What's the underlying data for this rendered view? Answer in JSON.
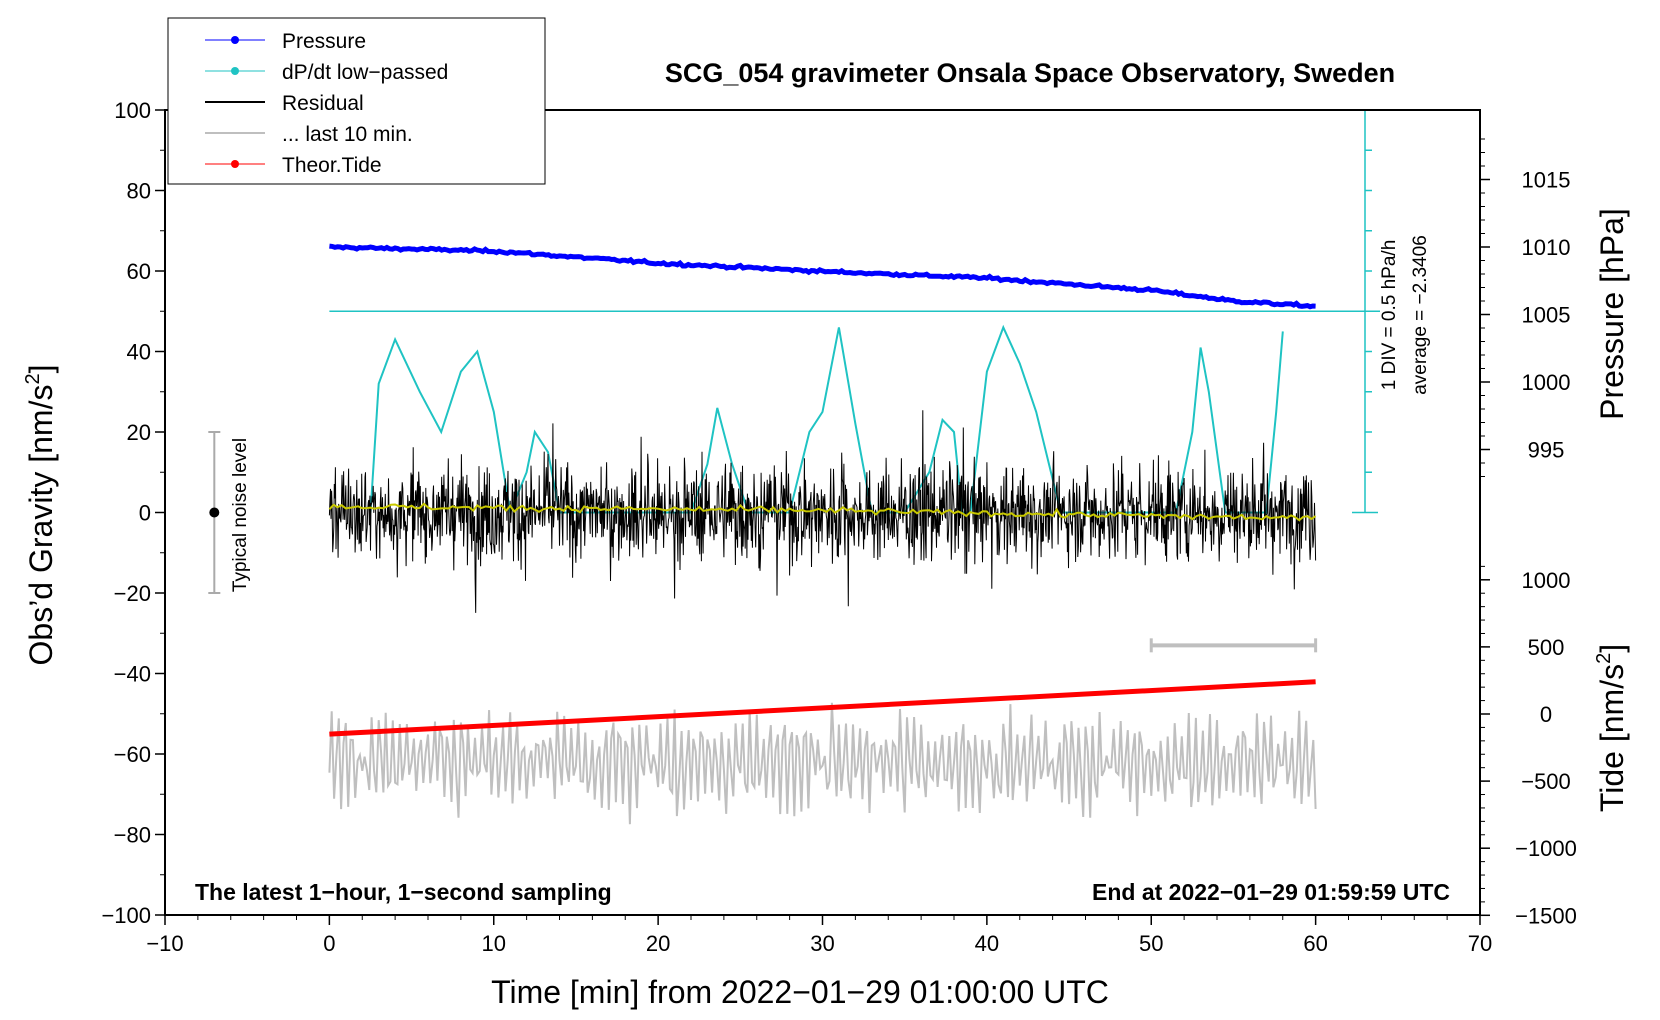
{
  "colors": {
    "pressure": "#0000ff",
    "dpdt": "#1fc3c3",
    "residual": "#000000",
    "last10": "#bfbfbf",
    "tide": "#ff0000",
    "mean": "#c8c800"
  },
  "chart_data": {
    "type": "line",
    "title": "SCG_054 gravimeter Onsala Space Observatory, Sweden",
    "xlabel": "Time [min] from 2022−01−29 01:00:00 UTC",
    "ylabel_left": "Obs’d Gravity [nm/s",
    "ylabel_left_sup": "2",
    "ylabel_left_end": "]",
    "ylabel_right_pressure": "Pressure [hPa]",
    "ylabel_right_tide": "Tide [nm/s",
    "ylabel_right_tide_sup": "2",
    "ylabel_right_tide_end": "]",
    "xlim": [
      -10,
      70
    ],
    "ylim": [
      -100,
      100
    ],
    "x_ticks": [
      "−10",
      "0",
      "10",
      "20",
      "30",
      "40",
      "50",
      "60",
      "70"
    ],
    "y_ticks": [
      "−100",
      "−80",
      "−60",
      "−40",
      "−20",
      "0",
      "20",
      "40",
      "60",
      "80",
      "100"
    ],
    "pressure_ticks": [
      "1015",
      "1010",
      "1005",
      "1000",
      "995"
    ],
    "pressure_tick_values": [
      1015,
      1010,
      1005,
      1000,
      995
    ],
    "tide_ticks": [
      "1000",
      "500",
      "0",
      "−500",
      "−1000",
      "−1500"
    ],
    "tide_tick_values": [
      1000,
      500,
      0,
      -500,
      -1000,
      -1500
    ],
    "legend": [
      "Pressure",
      "dP/dt low−passed",
      "Residual",
      "... last 10 min.",
      "Theor.Tide"
    ],
    "series": [
      {
        "name": "Pressure",
        "unit": "hPa",
        "x": [
          0,
          10,
          20,
          30,
          40,
          50,
          55,
          60
        ],
        "values": [
          1010.0,
          1009.7,
          1008.8,
          1008.2,
          1007.7,
          1006.8,
          1006.0,
          1005.6
        ]
      },
      {
        "name": "dP/dt low-passed",
        "unit": "gravity-axis units",
        "x": [
          2.5,
          3,
          4,
          5.5,
          6.8,
          8,
          9,
          10,
          11,
          12,
          12.5,
          13.3,
          14,
          20,
          22,
          23,
          23.6,
          24.5,
          25.5,
          28,
          29.2,
          30,
          31,
          32,
          33,
          35,
          36.5,
          37.3,
          38,
          38.5,
          39,
          40,
          41,
          42,
          43,
          44.5,
          46,
          49,
          51.5,
          52.5,
          53,
          53.5,
          54.5,
          55.5,
          57,
          57.6,
          58
        ],
        "values": [
          0,
          32,
          43,
          30,
          20,
          35,
          40,
          25,
          0,
          10,
          20,
          15,
          0,
          0,
          0,
          12,
          26,
          12,
          0,
          0,
          20,
          25,
          46,
          22,
          0,
          0,
          10,
          23,
          20,
          0,
          0,
          35,
          46,
          37,
          25,
          0,
          0,
          0,
          0,
          20,
          41,
          30,
          0,
          0,
          0,
          25,
          45
        ]
      },
      {
        "name": "Residual",
        "unit": "nm/s2",
        "x_range": [
          0,
          60
        ],
        "noise_std": 6
      },
      {
        "name": "Residual mean",
        "unit": "nm/s2",
        "x": [
          0,
          30,
          60
        ],
        "values": [
          1.5,
          0.5,
          -1.5
        ]
      },
      {
        "name": "... last 10 min.",
        "unit": "nm/s2 (offset display)",
        "x_range": [
          0,
          60
        ],
        "center": -62,
        "amplitude": 12
      },
      {
        "name": "Theor.Tide",
        "unit": "nm/s2",
        "x": [
          0,
          60
        ],
        "values": [
          -150,
          240
        ]
      }
    ],
    "reference": {
      "dpdt_scale_label": "1 DIV = 0.5 hPa/h",
      "average_label": "average = −2.3406",
      "dpdt_zero_level": 50,
      "dpdt_scale_bottom": 0,
      "dpdt_scale_top": 100,
      "last10_bar_x": [
        50,
        60
      ],
      "last10_bar_y": -33
    },
    "noise_level": {
      "label": "Typical noise level",
      "x": -7,
      "y": 0,
      "range": [
        -20,
        20
      ]
    },
    "footer_left": "The latest 1−hour, 1−second sampling",
    "footer_right": "End at 2022−01−29 01:59:59 UTC"
  }
}
